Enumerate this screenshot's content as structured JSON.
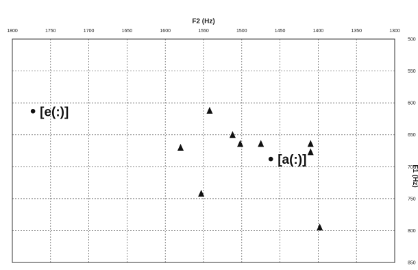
{
  "chart_data": {
    "type": "scatter",
    "xlabel": "F2 (Hz)",
    "ylabel": "F1 (Hz)",
    "xlim": [
      1800,
      1300
    ],
    "ylim": [
      500,
      850
    ],
    "x_ticks": [
      "1800",
      "1750",
      "1700",
      "1650",
      "1600",
      "1550",
      "1500",
      "1450",
      "1400",
      "1350",
      "1300"
    ],
    "y_ticks": [
      "500",
      "550",
      "600",
      "650",
      "700",
      "750",
      "800",
      "850"
    ],
    "x_axis_position": "top",
    "y_axis_position": "right",
    "x_axis_reversed": true,
    "y_axis_reversed": true,
    "grid": "dashed",
    "series": [
      {
        "marker": "triangle",
        "points": [
          {
            "x": 1542,
            "y": 612
          },
          {
            "x": 1512,
            "y": 650
          },
          {
            "x": 1502,
            "y": 664
          },
          {
            "x": 1475,
            "y": 664
          },
          {
            "x": 1410,
            "y": 664
          },
          {
            "x": 1410,
            "y": 677
          },
          {
            "x": 1580,
            "y": 670
          },
          {
            "x": 1553,
            "y": 742
          },
          {
            "x": 1398,
            "y": 795
          }
        ]
      },
      {
        "marker": "circle",
        "points": [
          {
            "x": 1773,
            "y": 613,
            "label": "[e(:)]"
          },
          {
            "x": 1462,
            "y": 688,
            "label": "[a(:)]"
          }
        ]
      }
    ]
  }
}
